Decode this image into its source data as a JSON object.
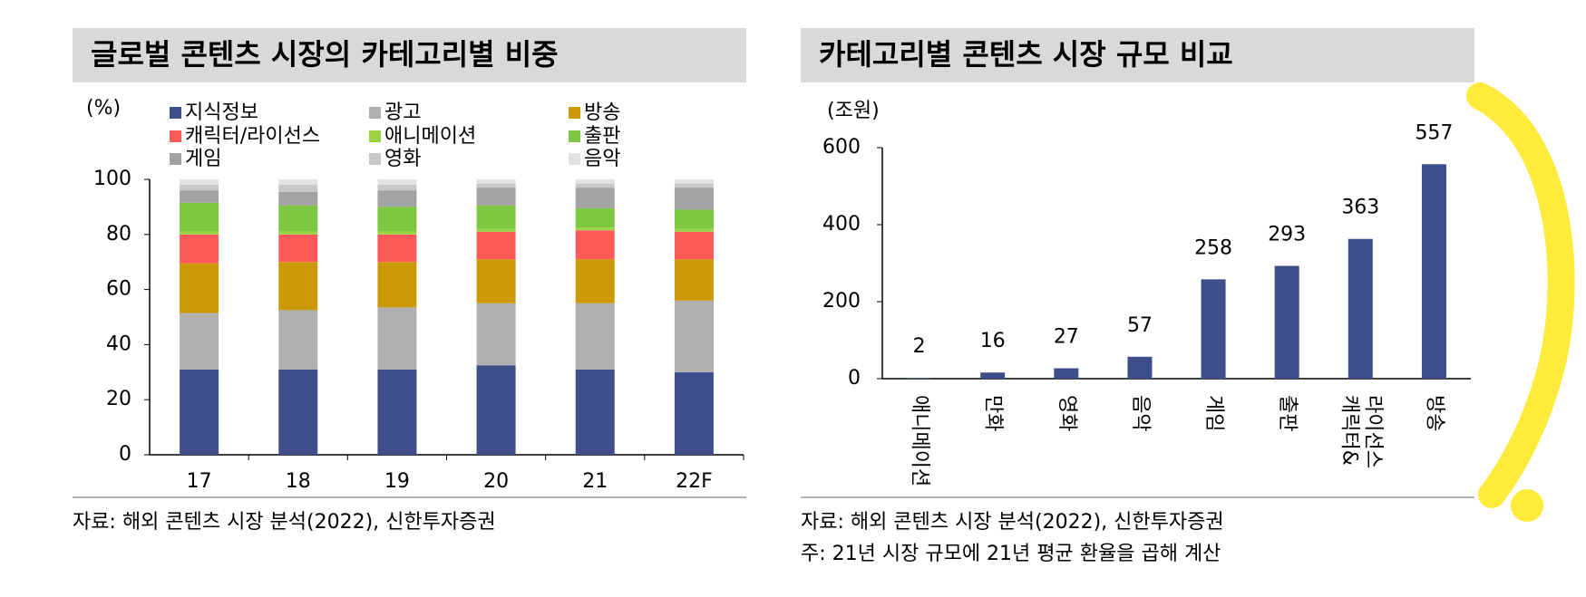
{
  "chart_data": [
    {
      "type": "stacked_bar",
      "title": "글로벌 콘텐츠 시장의 카테고리별 비중",
      "y_label": "(%)",
      "categories": [
        "17",
        "18",
        "19",
        "20",
        "21",
        "22F"
      ],
      "series": [
        {
          "name": "지식정보",
          "color": "#3f4e8a",
          "values": [
            31,
            31,
            31,
            32.5,
            31,
            30
          ]
        },
        {
          "name": "광고",
          "color": "#b0b0b0",
          "values": [
            20.5,
            21.5,
            22.5,
            22.5,
            24,
            26
          ]
        },
        {
          "name": "방송",
          "color": "#cc9a06",
          "values": [
            18,
            17.5,
            16.5,
            16,
            16,
            15
          ]
        },
        {
          "name": "캐릭터/라이선스",
          "color": "#ff5a5a",
          "values": [
            10.5,
            10,
            10,
            10,
            10.5,
            10
          ]
        },
        {
          "name": "애니메이션",
          "color": "#9ad444",
          "values": [
            1,
            1,
            1,
            1,
            1,
            1
          ]
        },
        {
          "name": "출판",
          "color": "#7cc840",
          "values": [
            10.5,
            9.5,
            9,
            8.5,
            7,
            7
          ]
        },
        {
          "name": "게임",
          "color": "#a3a3a3",
          "values": [
            4.5,
            5,
            6,
            6.5,
            7.5,
            8
          ]
        },
        {
          "name": "영화",
          "color": "#c8c8c8",
          "values": [
            2,
            2.5,
            2,
            1.5,
            1.5,
            1.5
          ]
        },
        {
          "name": "음악",
          "color": "#e2e2e2",
          "values": [
            2,
            2,
            2,
            1.5,
            1.5,
            1.5
          ]
        }
      ],
      "ylim": [
        0,
        100
      ],
      "yticks": [
        0,
        20,
        40,
        60,
        80,
        100
      ],
      "source": "자료: 해외 콘텐츠 시장 분석(2022), 신한투자증권"
    },
    {
      "type": "bar",
      "title": "카테고리별 콘텐츠 시장 규모 비교",
      "y_label": "(조원)",
      "categories": [
        "애니메이션",
        "만화",
        "영화",
        "음악",
        "게임",
        "출판",
        [
          "캐릭터&",
          "라이선스"
        ],
        "방송"
      ],
      "values": [
        2,
        16,
        27,
        57,
        258,
        293,
        363,
        557
      ],
      "color": "#3f4e8a",
      "ylim": [
        0,
        600
      ],
      "yticks": [
        0,
        200,
        400,
        600
      ],
      "source": "자료: 해외 콘텐츠 시장 분석(2022), 신한투자증권",
      "note": "주: 21년 시장 규모에 21년 평균 환율을 곱해 계산"
    }
  ]
}
